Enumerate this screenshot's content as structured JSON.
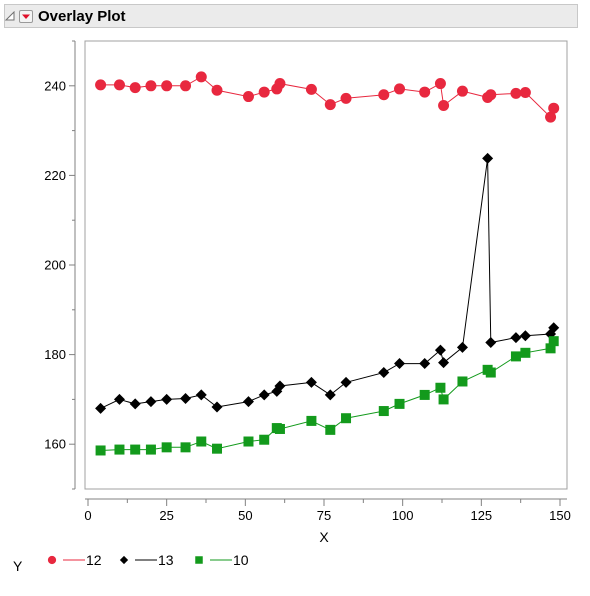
{
  "header": {
    "title": "Overlay Plot"
  },
  "icons": {
    "disclosure": "disclosure-triangle-icon",
    "hotspot": "red-triangle-menu-icon"
  },
  "legend": {
    "prefix": "Y"
  },
  "chart_data": {
    "type": "line",
    "title": "Overlay Plot",
    "xlabel": "X",
    "ylabel": "",
    "xlim": [
      0,
      150
    ],
    "ylim": [
      150,
      250
    ],
    "xticks": [
      0,
      25,
      50,
      75,
      100,
      125,
      150
    ],
    "yticks": [
      160,
      180,
      200,
      220,
      240
    ],
    "grid": false,
    "legend_position": "bottom-left",
    "series": [
      {
        "name": "12",
        "color": "#e8283f",
        "marker": "circle",
        "points": [
          [
            4,
            240.2
          ],
          [
            10,
            240.2
          ],
          [
            15,
            239.6
          ],
          [
            20,
            240
          ],
          [
            25,
            240
          ],
          [
            31,
            240
          ],
          [
            36,
            242
          ],
          [
            41,
            239
          ],
          [
            51,
            237.6
          ],
          [
            56,
            238.6
          ],
          [
            60,
            239.3
          ],
          [
            61,
            240.5
          ],
          [
            71,
            239.2
          ],
          [
            77,
            235.8
          ],
          [
            82,
            237.2
          ],
          [
            94,
            238
          ],
          [
            99,
            239.3
          ],
          [
            107,
            238.6
          ],
          [
            112,
            240.5
          ],
          [
            113,
            235.6
          ],
          [
            119,
            238.8
          ],
          [
            127,
            237.4
          ],
          [
            128,
            238
          ],
          [
            136,
            238.3
          ],
          [
            139,
            238.5
          ],
          [
            147,
            233
          ],
          [
            148,
            235
          ]
        ]
      },
      {
        "name": "13",
        "color": "#000000",
        "marker": "diamond",
        "points": [
          [
            4,
            168
          ],
          [
            10,
            170
          ],
          [
            15,
            169
          ],
          [
            20,
            169.5
          ],
          [
            25,
            170
          ],
          [
            31,
            170.2
          ],
          [
            36,
            171
          ],
          [
            41,
            168.3
          ],
          [
            51,
            169.5
          ],
          [
            56,
            171
          ],
          [
            60,
            171.8
          ],
          [
            61,
            173
          ],
          [
            71,
            173.8
          ],
          [
            77,
            171
          ],
          [
            82,
            173.8
          ],
          [
            94,
            176
          ],
          [
            99,
            178
          ],
          [
            107,
            178
          ],
          [
            112,
            181
          ],
          [
            113,
            178.2
          ],
          [
            119,
            181.6
          ],
          [
            127,
            223.8
          ],
          [
            128,
            182.7
          ],
          [
            136,
            183.8
          ],
          [
            139,
            184.2
          ],
          [
            147,
            184.6
          ],
          [
            148,
            186
          ]
        ]
      },
      {
        "name": "10",
        "color": "#139a1c",
        "marker": "square",
        "points": [
          [
            4,
            158.6
          ],
          [
            10,
            158.8
          ],
          [
            15,
            158.8
          ],
          [
            20,
            158.8
          ],
          [
            25,
            159.3
          ],
          [
            31,
            159.3
          ],
          [
            36,
            160.6
          ],
          [
            41,
            159
          ],
          [
            51,
            160.6
          ],
          [
            56,
            161
          ],
          [
            60,
            163.6
          ],
          [
            61,
            163.4
          ],
          [
            71,
            165.2
          ],
          [
            77,
            163.2
          ],
          [
            82,
            165.8
          ],
          [
            94,
            167.4
          ],
          [
            99,
            169
          ],
          [
            107,
            171
          ],
          [
            112,
            172.6
          ],
          [
            113,
            170
          ],
          [
            119,
            174
          ],
          [
            127,
            176.6
          ],
          [
            128,
            176
          ],
          [
            136,
            179.6
          ],
          [
            139,
            180.4
          ],
          [
            147,
            181.4
          ],
          [
            148,
            183
          ]
        ]
      }
    ]
  }
}
